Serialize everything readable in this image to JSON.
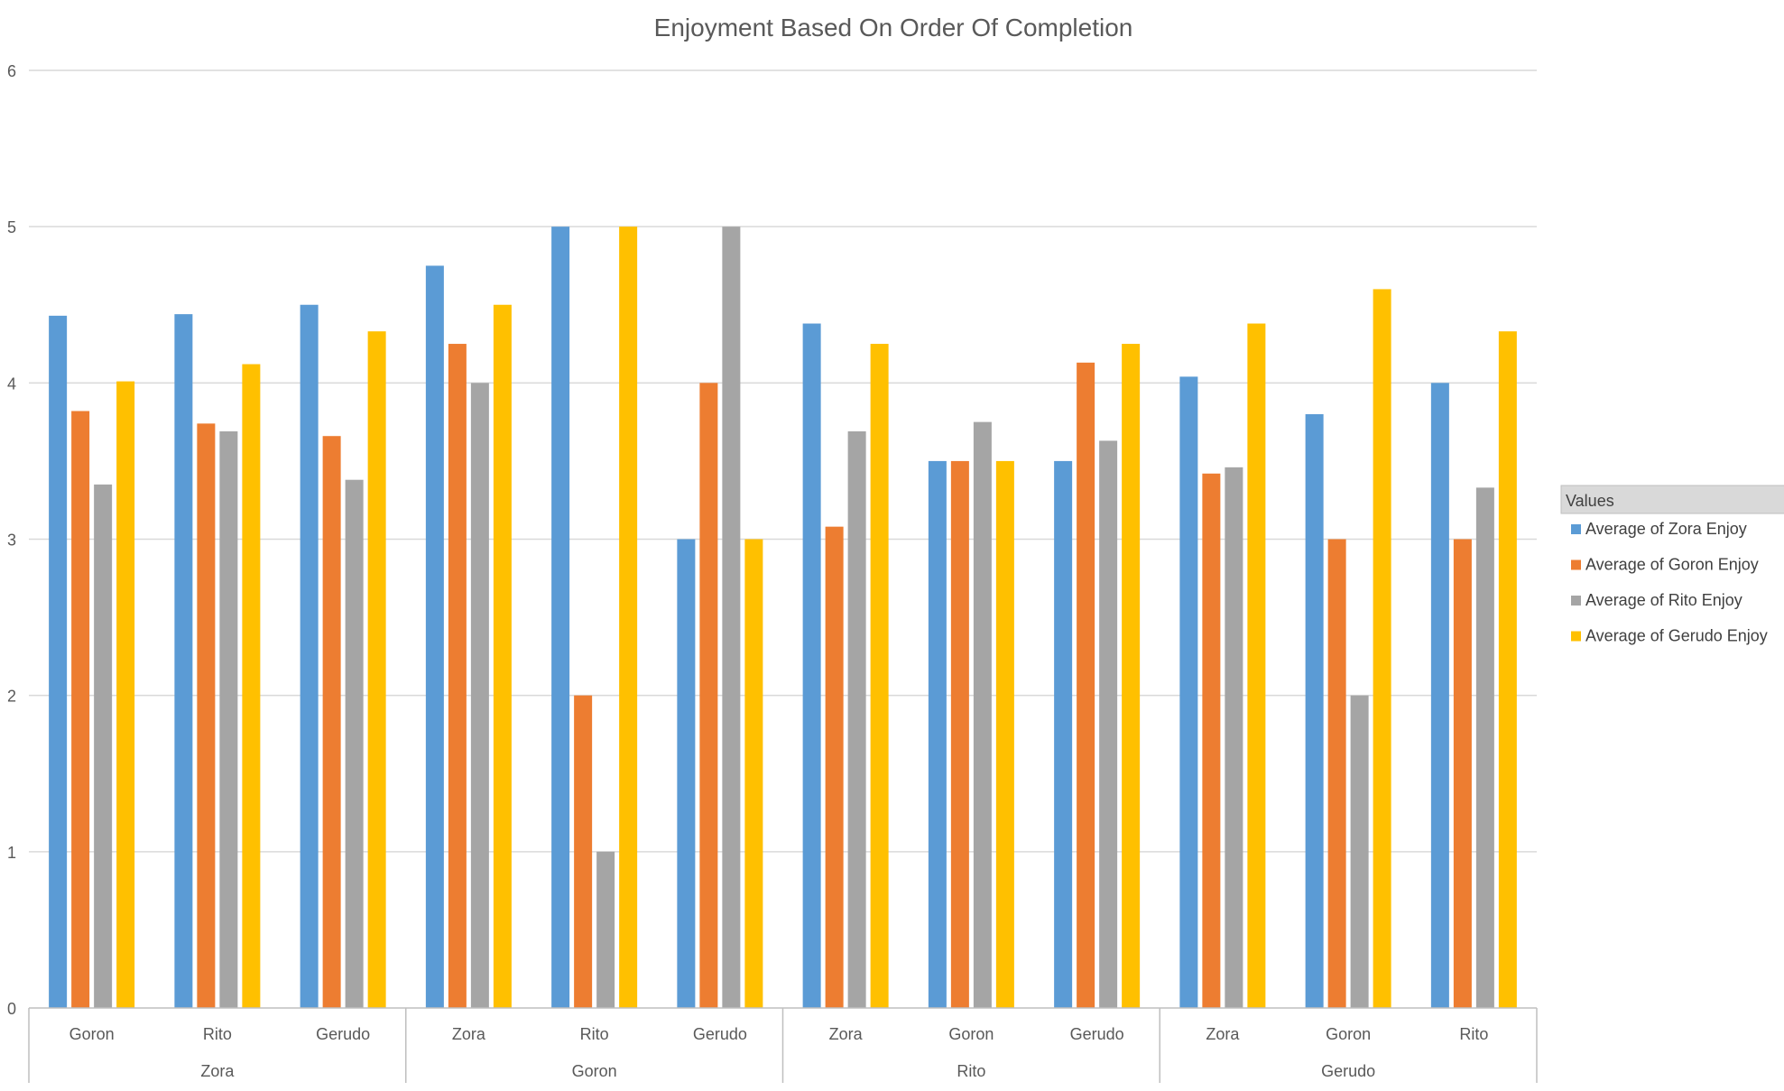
{
  "chart_data": {
    "type": "bar",
    "title": "Enjoyment Based On Order Of Completion",
    "ylim": [
      0,
      6
    ],
    "yticks": [
      0,
      1,
      2,
      3,
      4,
      5,
      6
    ],
    "grid": true,
    "legend_position": "right",
    "legend_title": "Values",
    "groups": [
      {
        "label": "Zora",
        "categories": [
          "Goron",
          "Rito",
          "Gerudo"
        ]
      },
      {
        "label": "Goron",
        "categories": [
          "Zora",
          "Rito",
          "Gerudo"
        ]
      },
      {
        "label": "Rito",
        "categories": [
          "Zora",
          "Goron",
          "Gerudo"
        ]
      },
      {
        "label": "Gerudo",
        "categories": [
          "Zora",
          "Goron",
          "Rito"
        ]
      }
    ],
    "series": [
      {
        "name": "Average of Zora Enjoy",
        "color": "#5B9BD5",
        "values": [
          4.43,
          4.44,
          4.5,
          4.75,
          5,
          3,
          4.38,
          3.5,
          3.5,
          4.04,
          3.8,
          4
        ]
      },
      {
        "name": "Average of Goron Enjoy",
        "color": "#ED7D31",
        "values": [
          3.82,
          3.74,
          3.66,
          4.25,
          2,
          4,
          3.08,
          3.5,
          4.13,
          3.42,
          3,
          3
        ]
      },
      {
        "name": "Average of Rito Enjoy",
        "color": "#A5A5A5",
        "values": [
          3.35,
          3.69,
          3.38,
          4,
          1,
          5,
          3.69,
          3.75,
          3.63,
          3.46,
          2,
          3.33
        ]
      },
      {
        "name": "Average of Gerudo Enjoy",
        "color": "#FFC000",
        "values": [
          4.01,
          4.12,
          4.33,
          4.5,
          5,
          3,
          4.25,
          3.5,
          4.25,
          4.38,
          4.6,
          4.33
        ]
      }
    ]
  }
}
